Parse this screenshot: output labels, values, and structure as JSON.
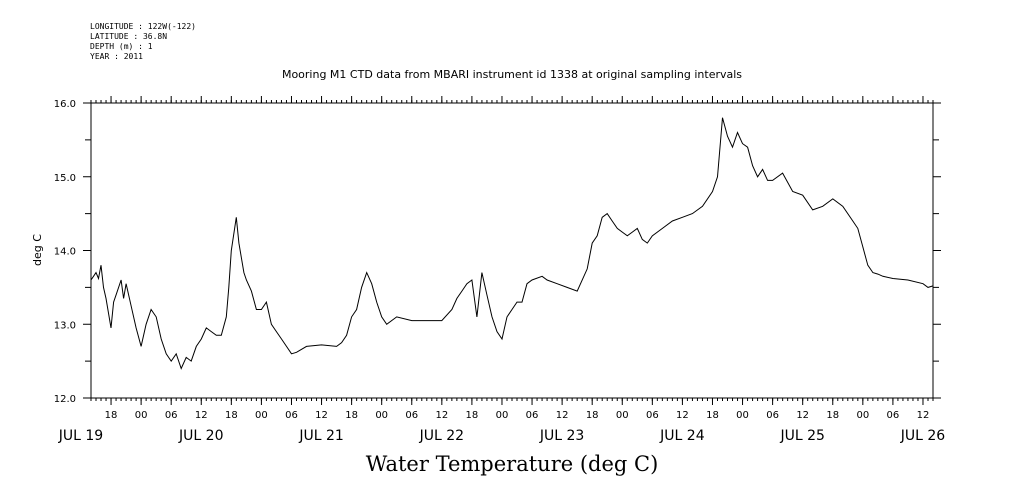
{
  "metadata": [
    "LONGITUDE : 122W(-122)",
    "LATITUDE : 36.8N",
    "DEPTH (m) : 1",
    "YEAR : 2011"
  ],
  "chart_data": {
    "type": "line",
    "title": "Mooring M1 CTD data from MBARI instrument id 1338 at original sampling intervals",
    "big_title": "Water Temperature (deg C)",
    "ylabel": "deg C",
    "xlabel": "",
    "ylim": [
      12.0,
      16.0
    ],
    "y_ticks": [
      "12.0",
      "13.0",
      "14.0",
      "15.0",
      "16.0"
    ],
    "x_start_hours": 14,
    "x_end_hours": 182,
    "x_hour_ticks": [
      "18",
      "00",
      "06",
      "12",
      "18",
      "00",
      "06",
      "12",
      "18",
      "00",
      "06",
      "12",
      "18",
      "00",
      "06",
      "12",
      "18",
      "00",
      "06",
      "12",
      "18",
      "00",
      "06",
      "12",
      "18",
      "00",
      "06",
      "12"
    ],
    "x_day_labels": [
      "JUL 19",
      "JUL 20",
      "JUL 21",
      "JUL 22",
      "JUL 23",
      "JUL 24",
      "JUL 25",
      "JUL 26"
    ],
    "grid": false,
    "series": [
      {
        "x": [
          "JUL 19 14:00",
          "JUL 19 14:30",
          "JUL 19 15:00",
          "JUL 19 15:30",
          "JUL 19 16:00",
          "JUL 19 16:30",
          "JUL 19 17:00",
          "JUL 19 18:00",
          "JUL 19 18:30",
          "JUL 19 19:00",
          "JUL 19 20:00",
          "JUL 19 20:30",
          "JUL 19 21:00",
          "JUL 19 22:00",
          "JUL 19 23:00",
          "JUL 20 00:00",
          "JUL 20 01:00",
          "JUL 20 02:00",
          "JUL 20 03:00",
          "JUL 20 04:00",
          "JUL 20 05:00",
          "JUL 20 06:00",
          "JUL 20 07:00",
          "JUL 20 08:00",
          "JUL 20 09:00",
          "JUL 20 10:00",
          "JUL 20 11:00",
          "JUL 20 12:00",
          "JUL 20 13:00",
          "JUL 20 14:00",
          "JUL 20 15:00",
          "JUL 20 16:00",
          "JUL 20 17:00",
          "JUL 20 17:30",
          "JUL 20 18:00",
          "JUL 20 19:00",
          "JUL 20 19:30",
          "JUL 20 20:00",
          "JUL 20 20:30",
          "JUL 20 21:00",
          "JUL 20 22:00",
          "JUL 20 23:00",
          "JUL 21 00:00",
          "JUL 21 01:00",
          "JUL 21 02:00",
          "JUL 21 03:00",
          "JUL 21 04:00",
          "JUL 21 05:00",
          "JUL 21 06:00",
          "JUL 21 07:00",
          "JUL 21 09:00",
          "JUL 21 12:00",
          "JUL 21 15:00",
          "JUL 21 16:00",
          "JUL 21 17:00",
          "JUL 21 18:00",
          "JUL 21 19:00",
          "JUL 21 20:00",
          "JUL 21 21:00",
          "JUL 21 22:00",
          "JUL 21 23:00",
          "JUL 22 00:00",
          "JUL 22 01:00",
          "JUL 22 03:00",
          "JUL 22 06:00",
          "JUL 22 09:00",
          "JUL 22 12:00",
          "JUL 22 14:00",
          "JUL 22 15:00",
          "JUL 22 16:00",
          "JUL 22 17:00",
          "JUL 22 18:00",
          "JUL 22 19:00",
          "JUL 22 20:00",
          "JUL 22 21:00",
          "JUL 22 22:00",
          "JUL 22 23:00",
          "JUL 23 00:00",
          "JUL 23 01:00",
          "JUL 23 02:00",
          "JUL 23 03:00",
          "JUL 23 04:00",
          "JUL 23 05:00",
          "JUL 23 06:00",
          "JUL 23 08:00",
          "JUL 23 09:00",
          "JUL 23 11:00",
          "JUL 23 13:00",
          "JUL 23 15:00",
          "JUL 23 17:00",
          "JUL 23 18:00",
          "JUL 23 19:00",
          "JUL 23 20:00",
          "JUL 23 21:00",
          "JUL 23 22:00",
          "JUL 23 23:00",
          "JUL 24 00:00",
          "JUL 24 01:00",
          "JUL 24 02:00",
          "JUL 24 03:00",
          "JUL 24 04:00",
          "JUL 24 05:00",
          "JUL 24 06:00",
          "JUL 24 08:00",
          "JUL 24 10:00",
          "JUL 24 12:00",
          "JUL 24 14:00",
          "JUL 24 16:00",
          "JUL 24 18:00",
          "JUL 24 19:00",
          "JUL 24 20:00",
          "JUL 24 21:00",
          "JUL 24 22:00",
          "JUL 24 23:00",
          "JUL 25 00:00",
          "JUL 25 01:00",
          "JUL 25 02:00",
          "JUL 25 03:00",
          "JUL 25 04:00",
          "JUL 25 05:00",
          "JUL 25 06:00",
          "JUL 25 08:00",
          "JUL 25 10:00",
          "JUL 25 12:00",
          "JUL 25 14:00",
          "JUL 25 16:00",
          "JUL 25 18:00",
          "JUL 25 20:00",
          "JUL 25 22:00",
          "JUL 25 23:00",
          "JUL 26 00:00",
          "JUL 26 01:00",
          "JUL 26 02:00",
          "JUL 26 03:00",
          "JUL 26 04:00",
          "JUL 26 06:00",
          "JUL 26 09:00",
          "JUL 26 12:00",
          "JUL 26 13:00",
          "JUL 26 14:00"
        ],
        "values": [
          13.6,
          13.65,
          13.7,
          13.62,
          13.8,
          13.5,
          13.35,
          12.95,
          13.3,
          13.4,
          13.6,
          13.35,
          13.55,
          13.25,
          12.95,
          12.7,
          13.0,
          13.2,
          13.1,
          12.8,
          12.6,
          12.5,
          12.6,
          12.4,
          12.55,
          12.5,
          12.7,
          12.8,
          12.95,
          12.9,
          12.85,
          12.85,
          13.1,
          13.5,
          14.0,
          14.45,
          14.1,
          13.9,
          13.7,
          13.6,
          13.45,
          13.2,
          13.2,
          13.3,
          13.0,
          12.9,
          12.8,
          12.7,
          12.6,
          12.62,
          12.7,
          12.72,
          12.7,
          12.75,
          12.85,
          13.1,
          13.2,
          13.5,
          13.7,
          13.55,
          13.3,
          13.1,
          13.0,
          13.1,
          13.05,
          13.05,
          13.05,
          13.2,
          13.35,
          13.45,
          13.55,
          13.6,
          13.1,
          13.7,
          13.4,
          13.1,
          12.9,
          12.8,
          13.1,
          13.2,
          13.3,
          13.3,
          13.55,
          13.6,
          13.65,
          13.6,
          13.55,
          13.5,
          13.45,
          13.75,
          14.1,
          14.2,
          14.45,
          14.5,
          14.4,
          14.3,
          14.25,
          14.2,
          14.25,
          14.3,
          14.15,
          14.1,
          14.2,
          14.3,
          14.4,
          14.45,
          14.5,
          14.6,
          14.8,
          15.0,
          15.8,
          15.55,
          15.4,
          15.6,
          15.45,
          15.4,
          15.15,
          15.0,
          15.1,
          14.95,
          14.95,
          15.05,
          14.8,
          14.75,
          14.55,
          14.6,
          14.7,
          14.6,
          14.4,
          14.3,
          14.05,
          13.8,
          13.7,
          13.68,
          13.65,
          13.62,
          13.6,
          13.55,
          13.5,
          13.52
        ]
      }
    ]
  }
}
